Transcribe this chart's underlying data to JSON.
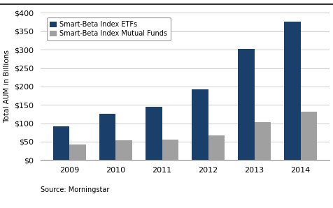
{
  "years": [
    "2009",
    "2010",
    "2011",
    "2012",
    "2013",
    "2014"
  ],
  "etf_values": [
    92,
    125,
    145,
    192,
    303,
    376
  ],
  "mf_values": [
    42,
    53,
    55,
    67,
    103,
    132
  ],
  "etf_color": "#1B3F6B",
  "mf_color": "#A0A0A0",
  "ylabel": "Total AUM in Billions",
  "ylim": [
    0,
    400
  ],
  "yticks": [
    0,
    50,
    100,
    150,
    200,
    250,
    300,
    350,
    400
  ],
  "legend_labels": [
    "Smart-Beta Index ETFs",
    "Smart-Beta Index Mutual Funds"
  ],
  "source_text": "Source: Morningstar",
  "background_color": "#FFFFFF",
  "grid_color": "#CCCCCC",
  "bar_width": 0.35
}
